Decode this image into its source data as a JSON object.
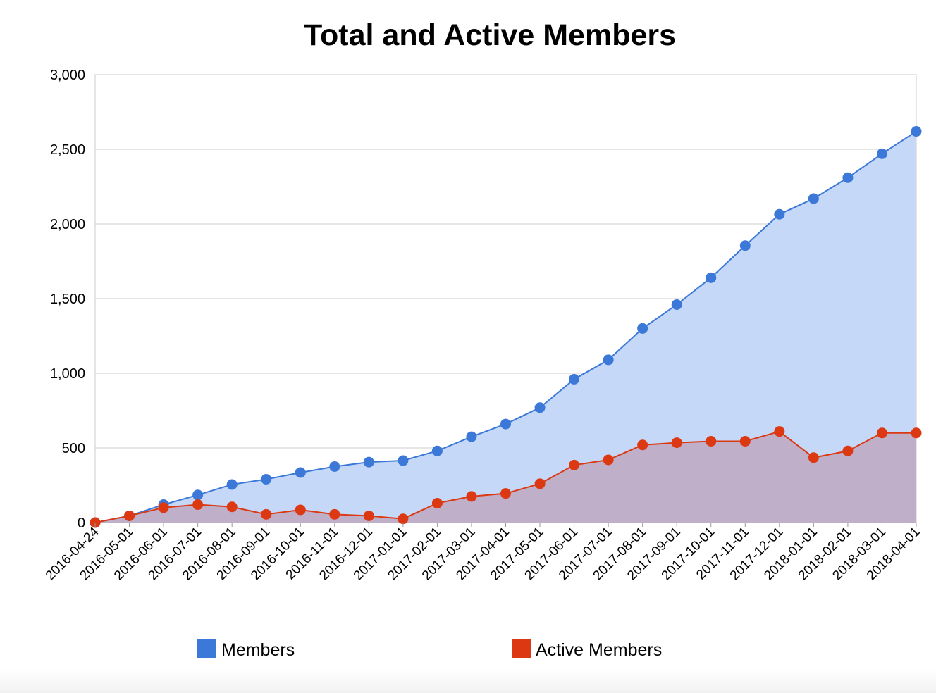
{
  "chart_data": {
    "type": "area",
    "title": "Total and Active Members",
    "xlabel": "",
    "ylabel": "",
    "ylim": [
      0,
      3000
    ],
    "yticks": [
      0,
      500,
      1000,
      1500,
      2000,
      2500,
      3000
    ],
    "ytick_labels": [
      "0",
      "500",
      "1,000",
      "1,500",
      "2,000",
      "2,500",
      "3,000"
    ],
    "grid": true,
    "legend_position": "bottom",
    "categories": [
      "2016-04-24",
      "2016-05-01",
      "2016-06-01",
      "2016-07-01",
      "2016-08-01",
      "2016-09-01",
      "2016-10-01",
      "2016-11-01",
      "2016-12-01",
      "2017-01-01",
      "2017-02-01",
      "2017-03-01",
      "2017-04-01",
      "2017-05-01",
      "2017-06-01",
      "2017-07-01",
      "2017-08-01",
      "2017-09-01",
      "2017-10-01",
      "2017-11-01",
      "2017-12-01",
      "2018-01-01",
      "2018-02-01",
      "2018-03-01",
      "2018-04-01"
    ],
    "series": [
      {
        "name": "Members",
        "color": "#3c78d8",
        "fill": "#c5d8f7",
        "values": [
          0,
          45,
          120,
          185,
          255,
          290,
          335,
          375,
          405,
          415,
          480,
          575,
          660,
          770,
          960,
          1090,
          1300,
          1460,
          1640,
          1855,
          2065,
          2170,
          2310,
          2470,
          2620
        ]
      },
      {
        "name": "Active Members",
        "color": "#dc3912",
        "fill": "#bfafc8",
        "values": [
          0,
          45,
          100,
          120,
          105,
          55,
          85,
          55,
          45,
          25,
          130,
          175,
          195,
          260,
          385,
          420,
          520,
          535,
          545,
          545,
          610,
          435,
          480,
          600,
          600
        ]
      }
    ]
  }
}
